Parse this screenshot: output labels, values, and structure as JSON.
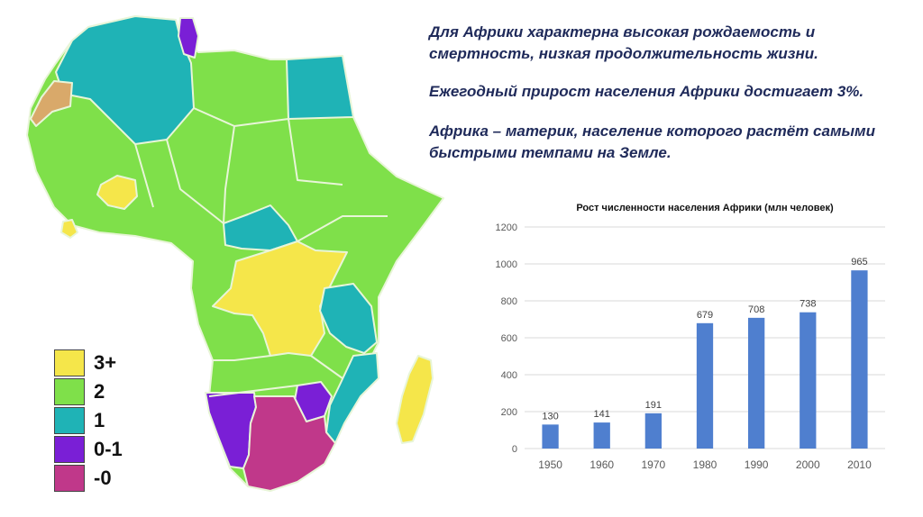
{
  "text": {
    "line1": "Для Африки характерна высокая рождаемость и смертность, низкая продолжительность жизни.",
    "line2": "Ежегодный прирост населения Африки достигает 3%.",
    "line3": "Африка – материк, население которого растёт самыми быстрыми темпами на Земле."
  },
  "legend": {
    "items": [
      {
        "label": "3+",
        "color": "#f5e64a"
      },
      {
        "label": "2",
        "color": "#7fe04a"
      },
      {
        "label": "1",
        "color": "#1fb3b6"
      },
      {
        "label": "0-1",
        "color": "#7a1fd6"
      },
      {
        "label": "-0",
        "color": "#c0388a"
      }
    ]
  },
  "map": {
    "colors": {
      "green": "#7fe04a",
      "teal": "#1fb3b6",
      "yellow": "#f5e64a",
      "purple": "#7a1fd6",
      "magenta": "#c0388a",
      "tan": "#d9a96a",
      "border": "#e8f5d8"
    }
  },
  "chart_data": {
    "type": "bar",
    "title": "Рост численности населения Африки (млн человек)",
    "categories": [
      "1950",
      "1960",
      "1970",
      "1980",
      "1990",
      "2000",
      "2010"
    ],
    "values": [
      130,
      141,
      191,
      679,
      708,
      738,
      965
    ],
    "ylim": [
      0,
      1200
    ],
    "yticks": [
      0,
      200,
      400,
      600,
      800,
      1000,
      1200
    ],
    "grid": true,
    "bar_color": "#4f7fcf"
  }
}
